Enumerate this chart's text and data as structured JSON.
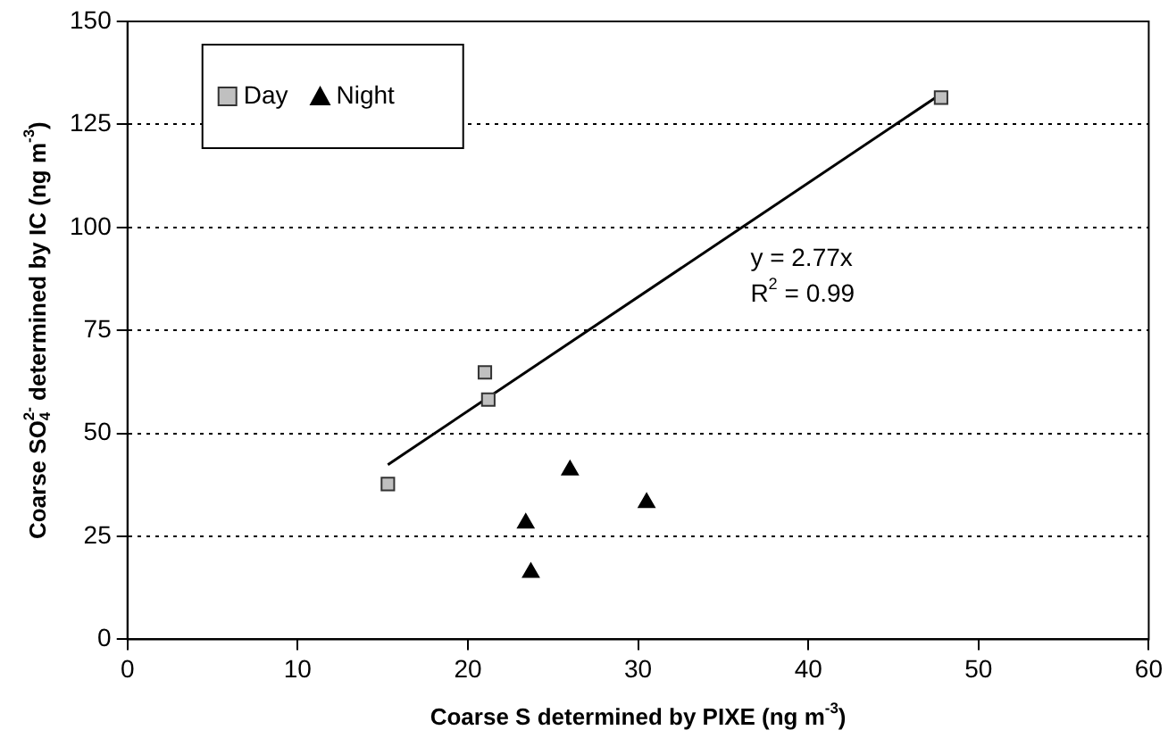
{
  "chart_data": {
    "type": "scatter",
    "xlabel": "Coarse S determined by PIXE (ng m$^{-3}$)",
    "ylabel": "Coarse SO$_{4}$$^{2-}$ determined by IC (ng m$^{-3}$)",
    "xlim": [
      0,
      60
    ],
    "xticks": [
      0,
      10,
      20,
      30,
      40,
      50,
      60
    ],
    "ylim": [
      0,
      150
    ],
    "yticks": [
      0,
      25,
      50,
      75,
      100,
      125,
      150
    ],
    "grid": "y",
    "legend": "top left",
    "series": [
      {
        "name": "Day",
        "color": "#c0c0c0",
        "marker": "square",
        "x": [
          15.3,
          21.0,
          21.2,
          47.8
        ],
        "values": [
          37.7,
          64.8,
          58.2,
          131.5
        ]
      },
      {
        "name": "Night",
        "color": "#000000",
        "marker": "triangle",
        "x": [
          26.0,
          30.5,
          23.4,
          23.7
        ],
        "values": [
          41.1,
          33.2,
          28.2,
          16.2
        ]
      },
      {
        "type": "line",
        "color": "#000000",
        "marker": "none",
        "x": [
          15.3,
          47.8
        ],
        "values": [
          42.4,
          132.4
        ]
      }
    ],
    "annotations": [
      "y = 2.77x",
      "R$^{2}$ = 0.99"
    ]
  }
}
